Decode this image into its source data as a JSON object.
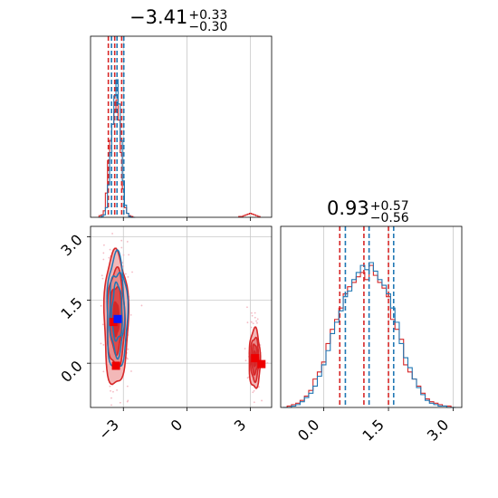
{
  "colors": {
    "red": "#d62728",
    "blue": "#1f77b4",
    "grid": "#c8c8c8",
    "scatter": "#f4b9c3",
    "fill_light": "#f3b8b8",
    "fill_mid": "#e98b8b",
    "fill_dark": "#dc4a4a"
  },
  "chart_data": [
    {
      "panel": "marginal-top",
      "type": "step-histogram",
      "title": {
        "main": "−3.41",
        "sup": "+0.33",
        "sub": "−0.30"
      },
      "xlim": [
        -4.55,
        4.0
      ],
      "x_ticks": [
        -3,
        0,
        3
      ],
      "grid": true,
      "series": [
        {
          "color": "#d62728",
          "x": [
            -4.1,
            -4.0,
            -3.9,
            -3.8,
            -3.7,
            -3.6,
            -3.5,
            -3.4,
            -3.3,
            -3.2,
            -3.1,
            -3.0,
            -2.9,
            -2.8,
            -2.7,
            -2.6,
            -2.5
          ],
          "values": [
            2,
            3,
            8,
            30,
            70,
            95,
            115,
            130,
            145,
            120,
            80,
            35,
            12,
            5,
            2,
            1,
            0
          ],
          "outlier_x": [
            2.5,
            2.6,
            2.7,
            2.8,
            2.9,
            3.0,
            3.1,
            3.2,
            3.3,
            3.4
          ],
          "outlier_values": [
            1,
            1,
            2,
            3,
            4,
            5,
            4,
            3,
            2,
            1
          ],
          "quantile_lines": [
            -3.71,
            -3.41,
            -3.08
          ]
        },
        {
          "color": "#1f77b4",
          "x": [
            -4.1,
            -4.0,
            -3.9,
            -3.8,
            -3.7,
            -3.6,
            -3.5,
            -3.4,
            -3.3,
            -3.2,
            -3.1,
            -3.0,
            -2.9,
            -2.8,
            -2.7,
            -2.6,
            -2.5
          ],
          "values": [
            0,
            1,
            3,
            12,
            40,
            80,
            115,
            150,
            170,
            140,
            95,
            45,
            15,
            5,
            1,
            0,
            0
          ],
          "quantile_lines": [
            -3.56,
            -3.3,
            -2.98
          ]
        }
      ]
    },
    {
      "panel": "marginal-right",
      "type": "step-histogram",
      "title": {
        "main": "0.93",
        "sup": "+0.57",
        "sub": "−0.56"
      },
      "xlim": [
        -1.0,
        3.2
      ],
      "x_ticks": [
        "0.0",
        "1.5",
        "3.0"
      ],
      "x_tick_values": [
        0.0,
        1.5,
        3.0
      ],
      "grid": true,
      "series": [
        {
          "color": "#d62728",
          "x": [
            -0.9,
            -0.8,
            -0.7,
            -0.6,
            -0.5,
            -0.4,
            -0.3,
            -0.2,
            -0.1,
            0.0,
            0.1,
            0.2,
            0.3,
            0.4,
            0.5,
            0.6,
            0.7,
            0.8,
            0.9,
            1.0,
            1.1,
            1.2,
            1.3,
            1.4,
            1.5,
            1.6,
            1.7,
            1.8,
            1.9,
            2.0,
            2.1,
            2.2,
            2.3,
            2.4,
            2.5,
            2.6,
            2.7,
            2.8,
            2.9,
            3.0
          ],
          "values": [
            0,
            1,
            2,
            3,
            5,
            8,
            12,
            20,
            25,
            32,
            45,
            55,
            62,
            70,
            80,
            85,
            88,
            92,
            95,
            90,
            100,
            93,
            88,
            84,
            78,
            62,
            55,
            48,
            30,
            25,
            20,
            15,
            10,
            6,
            4,
            3,
            2,
            1,
            1,
            0
          ],
          "quantile_lines": [
            0.37,
            0.93,
            1.5
          ]
        },
        {
          "color": "#1f77b4",
          "x": [
            -0.9,
            -0.8,
            -0.7,
            -0.6,
            -0.5,
            -0.4,
            -0.3,
            -0.2,
            -0.1,
            0.0,
            0.1,
            0.2,
            0.3,
            0.4,
            0.5,
            0.6,
            0.7,
            0.8,
            0.9,
            1.0,
            1.1,
            1.2,
            1.3,
            1.4,
            1.5,
            1.6,
            1.7,
            1.8,
            1.9,
            2.0,
            2.1,
            2.2,
            2.3,
            2.4,
            2.5,
            2.6,
            2.7,
            2.8,
            2.9,
            3.0
          ],
          "values": [
            0,
            0,
            1,
            2,
            4,
            7,
            10,
            15,
            22,
            30,
            40,
            52,
            60,
            68,
            78,
            82,
            90,
            95,
            100,
            97,
            102,
            96,
            90,
            86,
            80,
            70,
            60,
            45,
            35,
            28,
            20,
            14,
            9,
            5,
            3,
            2,
            1,
            1,
            0,
            0
          ],
          "quantile_lines": [
            0.5,
            1.05,
            1.62
          ]
        }
      ]
    },
    {
      "panel": "joint",
      "type": "contour-scatter",
      "xlim": [
        -4.55,
        4.0
      ],
      "ylim": [
        -1.05,
        3.25
      ],
      "x_ticks": [
        "−3",
        "0",
        "3"
      ],
      "x_tick_values": [
        -3,
        0,
        3
      ],
      "y_ticks": [
        "0.0",
        "1.5",
        "3.0"
      ],
      "y_tick_values": [
        0.0,
        1.5,
        3.0
      ],
      "grid": true,
      "main_cluster": {
        "cx": -3.35,
        "cy": 1.05,
        "sx": 0.26,
        "sy": 0.72
      },
      "outlier_cluster": {
        "cx": 3.2,
        "cy": 0.1,
        "sx": 0.12,
        "sy": 0.32
      },
      "contour_levels_sigma": [
        2.2,
        1.6,
        1.1,
        0.55
      ],
      "markers": [
        {
          "color": "#d62728",
          "x": -3.47,
          "y": 0.98
        },
        {
          "color": "#1f77b4",
          "x": -3.27,
          "y": 1.05
        },
        {
          "color": "#d62728",
          "x": -3.35,
          "y": -0.06
        },
        {
          "color": "#d62728",
          "x": 3.22,
          "y": 0.12
        },
        {
          "color": "#d62728",
          "x": 3.52,
          "y": -0.02
        }
      ]
    }
  ]
}
